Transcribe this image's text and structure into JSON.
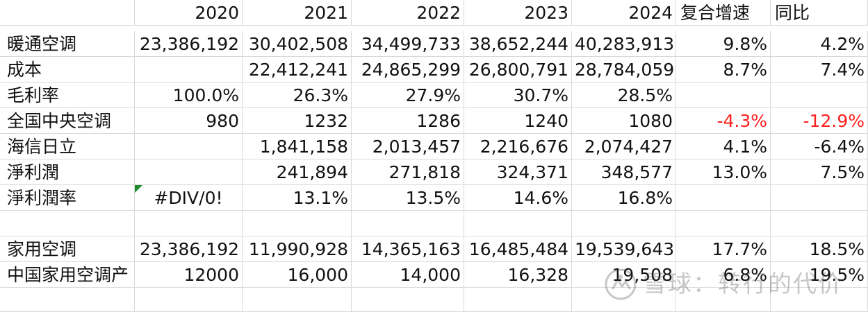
{
  "sheet": {
    "header": [
      "",
      "2020",
      "2021",
      "2022",
      "2023",
      "2024",
      "复合增速",
      "同比"
    ],
    "rows": [
      [
        "暖通空调",
        "23,386,192",
        "30,402,508",
        "34,499,733",
        "38,652,244",
        "40,283,913",
        "9.8%",
        "4.2%"
      ],
      [
        "成本",
        "",
        "22,412,241",
        "24,865,299",
        "26,800,791",
        "28,784,059",
        "8.7%",
        "7.4%"
      ],
      [
        "毛利率",
        "100.0%",
        "26.3%",
        "27.9%",
        "30.7%",
        "28.5%",
        "",
        ""
      ],
      [
        "全国中央空调",
        "980",
        "1232",
        "1286",
        "1240",
        "1080",
        "-4.3%",
        "-12.9%"
      ],
      [
        "海信日立",
        "",
        "1,841,158",
        "2,013,457",
        "2,216,676",
        "2,074,427",
        "4.1%",
        "-6.4%"
      ],
      [
        "淨利潤",
        "",
        "241,894",
        "271,818",
        "324,371",
        "348,577",
        "13.0%",
        "7.5%"
      ],
      [
        "淨利潤率",
        "#DIV/0!",
        "13.1%",
        "13.5%",
        "14.6%",
        "16.8%",
        "",
        ""
      ],
      [
        "",
        "",
        "",
        "",
        "",
        "",
        "",
        ""
      ],
      [
        "家用空调",
        "23,386,192",
        "11,990,928",
        "14,365,163",
        "16,485,484",
        "19,539,643",
        "17.7%",
        "18.5%"
      ],
      [
        "中国家用空调产",
        "12000",
        "16,000",
        "14,000",
        "16,328",
        "19,508",
        "6.8%",
        "19.5%"
      ],
      [
        "",
        "",
        "",
        "",
        "",
        "",
        "",
        ""
      ]
    ]
  },
  "colors": {
    "negative": "#ff2020",
    "gridline": "#d9d9d9",
    "comment_indicator": "#1f8b2c"
  },
  "watermark": {
    "icon": "snowball-logo-icon",
    "text": "雪球：转行的代价"
  }
}
